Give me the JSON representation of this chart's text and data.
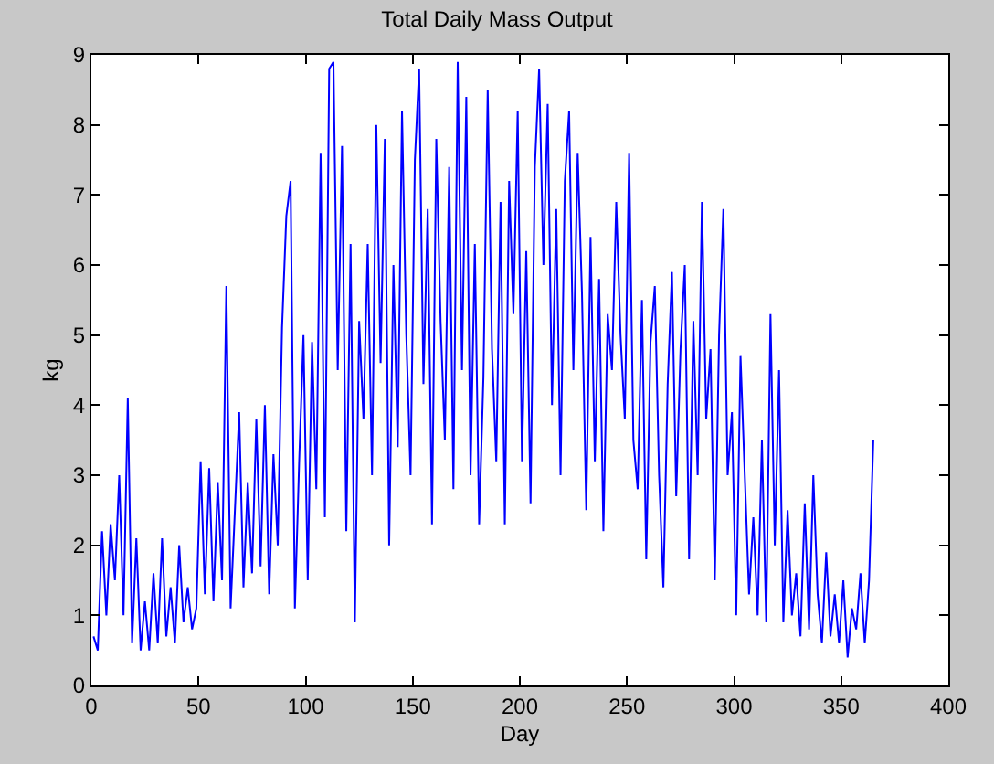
{
  "chart_data": {
    "type": "line",
    "title": "Total Daily Mass Output",
    "xlabel": "Day",
    "ylabel": "kg",
    "xlim": [
      0,
      400
    ],
    "xticks": [
      0,
      50,
      100,
      150,
      200,
      250,
      300,
      350,
      400
    ],
    "ylim": [
      0,
      9
    ],
    "yticks": [
      0,
      1,
      2,
      3,
      4,
      5,
      6,
      7,
      8,
      9
    ],
    "grid": false,
    "marker": "none",
    "line_style": "solid",
    "x": [
      1,
      3,
      5,
      7,
      9,
      11,
      13,
      15,
      17,
      19,
      21,
      23,
      25,
      27,
      29,
      31,
      33,
      35,
      37,
      39,
      41,
      43,
      45,
      47,
      49,
      51,
      53,
      55,
      57,
      59,
      61,
      63,
      65,
      67,
      69,
      71,
      73,
      75,
      77,
      79,
      81,
      83,
      85,
      87,
      89,
      91,
      93,
      95,
      97,
      99,
      101,
      103,
      105,
      107,
      109,
      111,
      113,
      115,
      117,
      119,
      121,
      123,
      125,
      127,
      129,
      131,
      133,
      135,
      137,
      139,
      141,
      143,
      145,
      147,
      149,
      151,
      153,
      155,
      157,
      159,
      161,
      163,
      165,
      167,
      169,
      171,
      173,
      175,
      177,
      179,
      181,
      183,
      185,
      187,
      189,
      191,
      193,
      195,
      197,
      199,
      201,
      203,
      205,
      207,
      209,
      211,
      213,
      215,
      217,
      219,
      221,
      223,
      225,
      227,
      229,
      231,
      233,
      235,
      237,
      239,
      241,
      243,
      245,
      247,
      249,
      251,
      253,
      255,
      257,
      259,
      261,
      263,
      265,
      267,
      269,
      271,
      273,
      275,
      277,
      279,
      281,
      283,
      285,
      287,
      289,
      291,
      293,
      295,
      297,
      299,
      301,
      303,
      305,
      307,
      309,
      311,
      313,
      315,
      317,
      319,
      321,
      323,
      325,
      327,
      329,
      331,
      333,
      335,
      337,
      339,
      341,
      343,
      345,
      347,
      349,
      351,
      353,
      355,
      357,
      359,
      361,
      363,
      365
    ],
    "series": [
      {
        "color": "#0000ff",
        "values": [
          0.7,
          0.5,
          2.2,
          1.0,
          2.3,
          1.5,
          3.0,
          1.0,
          4.1,
          0.6,
          2.1,
          0.5,
          1.2,
          0.5,
          1.6,
          0.6,
          2.1,
          0.7,
          1.4,
          0.6,
          2.0,
          0.9,
          1.4,
          0.8,
          1.1,
          3.2,
          1.3,
          3.1,
          1.2,
          2.9,
          1.5,
          5.7,
          1.1,
          2.5,
          3.9,
          1.4,
          2.9,
          1.6,
          3.8,
          1.7,
          4.0,
          1.3,
          3.3,
          2.0,
          5.1,
          6.7,
          7.2,
          1.1,
          3.2,
          5.0,
          1.5,
          4.9,
          2.8,
          7.6,
          2.4,
          8.8,
          8.9,
          4.5,
          7.7,
          2.2,
          6.3,
          0.9,
          5.2,
          3.8,
          6.3,
          3.0,
          8.0,
          4.6,
          7.8,
          2.0,
          6.0,
          3.4,
          8.2,
          5.0,
          3.0,
          7.5,
          8.8,
          4.3,
          6.8,
          2.3,
          7.8,
          5.2,
          3.5,
          7.4,
          2.8,
          8.9,
          4.5,
          8.4,
          3.0,
          6.3,
          2.3,
          4.4,
          8.5,
          4.8,
          3.2,
          6.9,
          2.3,
          7.2,
          5.3,
          8.2,
          3.2,
          6.2,
          2.6,
          7.4,
          8.8,
          6.0,
          8.3,
          4.0,
          6.8,
          3.0,
          7.2,
          8.2,
          4.5,
          7.6,
          5.6,
          2.5,
          6.4,
          3.2,
          5.8,
          2.2,
          5.3,
          4.5,
          6.9,
          5.0,
          3.8,
          7.6,
          3.5,
          2.8,
          5.5,
          1.8,
          4.9,
          5.7,
          3.0,
          1.4,
          4.3,
          5.9,
          2.7,
          4.8,
          6.0,
          1.8,
          5.2,
          3.0,
          6.9,
          3.8,
          4.8,
          1.5,
          5.0,
          6.8,
          3.0,
          3.9,
          1.0,
          4.7,
          3.0,
          1.3,
          2.4,
          1.0,
          3.5,
          0.9,
          5.3,
          2.0,
          4.5,
          0.9,
          2.5,
          1.0,
          1.6,
          0.7,
          2.6,
          0.8,
          3.0,
          1.3,
          0.6,
          1.9,
          0.7,
          1.3,
          0.6,
          1.5,
          0.4,
          1.1,
          0.8,
          1.6,
          0.6,
          1.5,
          3.5
        ]
      }
    ]
  }
}
